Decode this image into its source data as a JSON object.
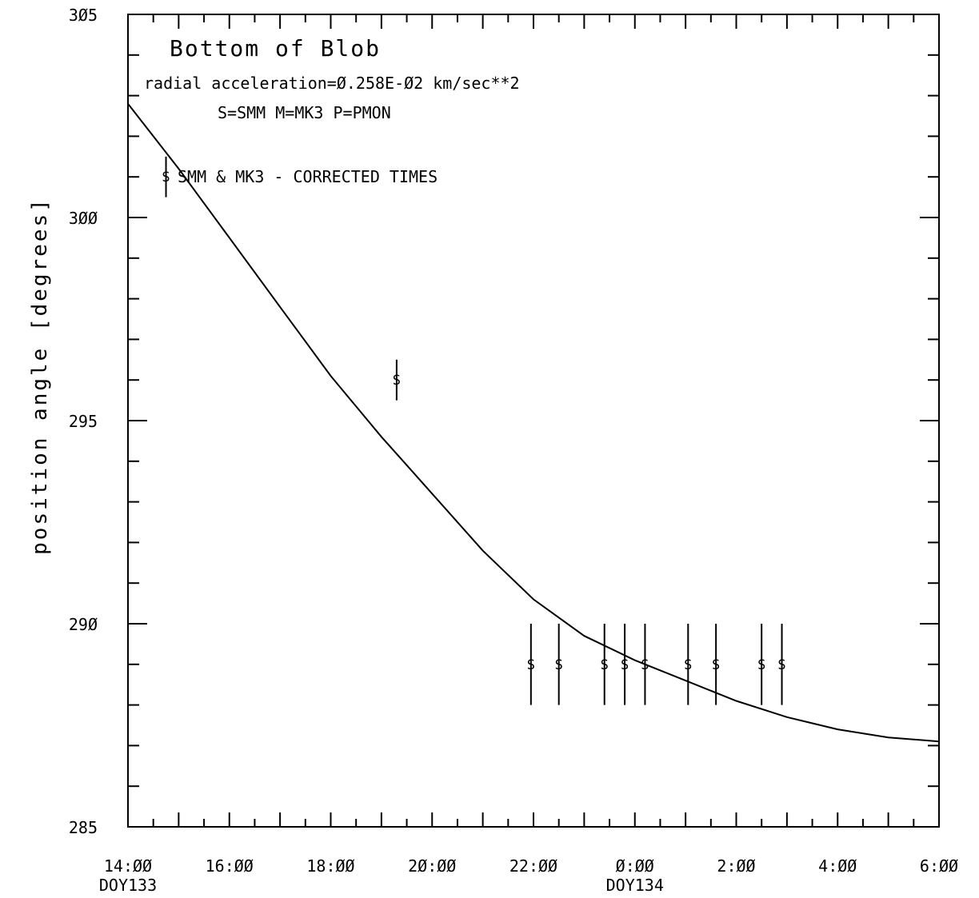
{
  "chart_data": {
    "type": "scatter",
    "title": "Bottom of Blob",
    "annotations": [
      "radial acceleration=Ø.258E-Ø2  km/sec**2",
      "S=SMM  M=MK3  P=PMON",
      "SMM & MK3 - CORRECTED TIMES"
    ],
    "ylabel": "position angle [degrees]",
    "xlabel": "",
    "ylim": [
      285,
      305
    ],
    "xlim": [
      14,
      30
    ],
    "y_ticks": [
      {
        "value": 285,
        "label": "285"
      },
      {
        "value": 290,
        "label": "29Ø"
      },
      {
        "value": 295,
        "label": "295"
      },
      {
        "value": 300,
        "label": "3ØØ"
      },
      {
        "value": 305,
        "label": "3Ø5"
      }
    ],
    "x_ticks": [
      {
        "value": 14,
        "label": "14:ØØ",
        "sublabel": "DOY133"
      },
      {
        "value": 16,
        "label": "16:ØØ",
        "sublabel": ""
      },
      {
        "value": 18,
        "label": "18:ØØ",
        "sublabel": ""
      },
      {
        "value": 20,
        "label": "2Ø:ØØ",
        "sublabel": ""
      },
      {
        "value": 22,
        "label": "22:ØØ",
        "sublabel": ""
      },
      {
        "value": 24,
        "label": "Ø:ØØ",
        "sublabel": "DOY134"
      },
      {
        "value": 26,
        "label": "2:ØØ",
        "sublabel": ""
      },
      {
        "value": 28,
        "label": "4:ØØ",
        "sublabel": ""
      },
      {
        "value": 30,
        "label": "6:ØØ",
        "sublabel": ""
      }
    ],
    "grid": false,
    "series": [
      {
        "marker": "S",
        "points": [
          {
            "x": 14.75,
            "y": 301.0,
            "err": 0.5
          },
          {
            "x": 19.3,
            "y": 296.0,
            "err": 0.5
          },
          {
            "x": 21.95,
            "y": 289.0,
            "err": 1.0
          },
          {
            "x": 22.5,
            "y": 289.0,
            "err": 1.0
          },
          {
            "x": 23.4,
            "y": 289.0,
            "err": 1.0
          },
          {
            "x": 23.8,
            "y": 289.0,
            "err": 1.0
          },
          {
            "x": 24.2,
            "y": 289.0,
            "err": 1.0
          },
          {
            "x": 25.05,
            "y": 289.0,
            "err": 1.0
          },
          {
            "x": 25.6,
            "y": 289.0,
            "err": 1.0
          },
          {
            "x": 26.5,
            "y": 289.0,
            "err": 1.0
          },
          {
            "x": 26.9,
            "y": 289.0,
            "err": 1.0
          }
        ]
      }
    ],
    "fit_curve": {
      "x": [
        14,
        15,
        16,
        17,
        18,
        19,
        20,
        21,
        22,
        23,
        24,
        25,
        26,
        27,
        28,
        29,
        30
      ],
      "y": [
        302.8,
        301.2,
        299.5,
        297.8,
        296.1,
        294.6,
        293.2,
        291.8,
        290.6,
        289.7,
        289.1,
        288.6,
        288.1,
        287.7,
        287.4,
        287.2,
        287.1
      ]
    }
  }
}
